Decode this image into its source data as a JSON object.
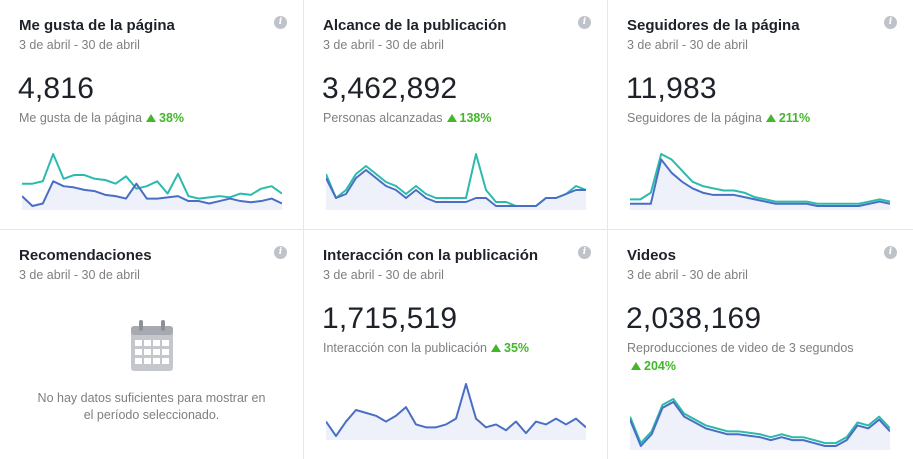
{
  "colors": {
    "teal": "#2bbbad",
    "blue": "#4a6ec4",
    "fill": "#eef1fa",
    "green": "#42b72a",
    "grey": "#7f7f7f"
  },
  "cards": [
    {
      "title": "Me gusta de la página",
      "date": "3 de abril - 30 de abril",
      "value": "4,816",
      "label": "Me gusta de la página",
      "delta": "38%",
      "series_teal": [
        6,
        6,
        8,
        30,
        10,
        13,
        13,
        10,
        9,
        6,
        12,
        2,
        4,
        8,
        -2,
        14,
        -4,
        -6,
        -5,
        -4,
        -5,
        -2,
        -3,
        2,
        4,
        -2
      ],
      "series_blue": [
        -4,
        -12,
        -10,
        8,
        4,
        3,
        1,
        0,
        -3,
        -4,
        -6,
        6,
        -6,
        -6,
        -5,
        -4,
        -8,
        -8,
        -10,
        -8,
        -6,
        -8,
        -9,
        -8,
        -6,
        -10
      ],
      "icon": "info-icon"
    },
    {
      "title": "Alcance de la publicación",
      "date": "3 de abril - 30 de abril",
      "value": "3,462,892",
      "label": "Personas alcanzadas",
      "delta": "138%",
      "series_teal": [
        10,
        -2,
        2,
        10,
        14,
        10,
        6,
        4,
        0,
        4,
        0,
        -2,
        -2,
        -2,
        -2,
        20,
        2,
        -4,
        -4,
        -6,
        -6,
        -6,
        -2,
        -2,
        0,
        4,
        2
      ],
      "series_blue": [
        8,
        -2,
        0,
        8,
        12,
        8,
        4,
        2,
        -2,
        2,
        -2,
        -4,
        -4,
        -4,
        -4,
        -2,
        -2,
        -6,
        -6,
        -6,
        -6,
        -6,
        -2,
        -2,
        0,
        2,
        2
      ],
      "icon": "info-icon"
    },
    {
      "title": "Seguidores de la página",
      "date": "3 de abril - 30 de abril",
      "value": "11,983",
      "label": "Seguidores de la página",
      "delta": "211%",
      "series_teal": [
        4,
        4,
        10,
        45,
        40,
        30,
        20,
        16,
        14,
        12,
        12,
        10,
        6,
        4,
        2,
        2,
        2,
        2,
        0,
        0,
        0,
        0,
        0,
        2,
        4,
        2
      ],
      "series_blue": [
        0,
        0,
        0,
        40,
        28,
        20,
        14,
        10,
        8,
        8,
        8,
        6,
        4,
        2,
        0,
        0,
        0,
        0,
        -2,
        -2,
        -2,
        -2,
        -2,
        0,
        2,
        0
      ],
      "icon": "info-icon"
    },
    {
      "title": "Recomendaciones",
      "date": "3 de abril - 30 de abril",
      "empty_line1": "No hay datos suficientes para mostrar en",
      "empty_line2": "el período seleccionado.",
      "icon": "calendar-icon"
    },
    {
      "title": "Interacción con la publicación",
      "date": "3 de abril - 30 de abril",
      "value": "1,715,519",
      "label": "Interacción con la publicación",
      "delta": "35%",
      "series_blue": [
        4,
        -6,
        4,
        12,
        10,
        8,
        4,
        8,
        14,
        2,
        0,
        0,
        2,
        6,
        30,
        6,
        0,
        2,
        -2,
        4,
        -4,
        4,
        2,
        6,
        2,
        6,
        0
      ],
      "icon": "info-icon"
    },
    {
      "title": "Videos",
      "date": "3 de abril - 30 de abril",
      "value": "2,038,169",
      "label": "Reproducciones de video de 3 segundos",
      "delta": "204%",
      "series_teal": [
        10,
        -8,
        0,
        18,
        22,
        12,
        8,
        4,
        2,
        0,
        0,
        -1,
        -2,
        -4,
        -2,
        -4,
        -4,
        -6,
        -8,
        -8,
        -4,
        6,
        4,
        10,
        2
      ],
      "series_blue": [
        8,
        -10,
        -2,
        16,
        20,
        10,
        6,
        2,
        0,
        -2,
        -2,
        -3,
        -4,
        -6,
        -4,
        -6,
        -6,
        -8,
        -10,
        -10,
        -6,
        4,
        2,
        8,
        0
      ],
      "icon": "info-icon"
    }
  ]
}
